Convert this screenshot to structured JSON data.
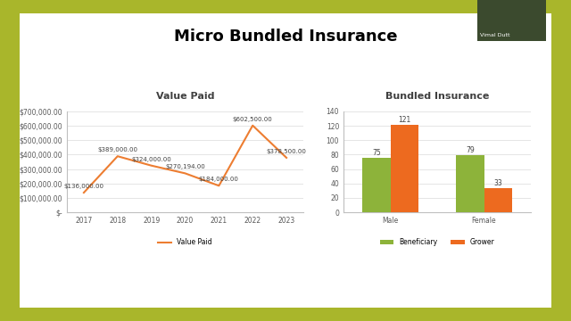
{
  "title": "Micro Bundled Insurance",
  "presenter": "Vimal Dutt",
  "chart_data": [
    {
      "type": "line",
      "title": "Value Paid",
      "categories": [
        "2017",
        "2018",
        "2019",
        "2020",
        "2021",
        "2022",
        "2023"
      ],
      "series": [
        {
          "name": "Value Paid",
          "color": "#ED7D31",
          "values": [
            136000,
            389000,
            324000,
            270194,
            184000,
            602500,
            378500
          ],
          "value_labels": [
            "$136,000.00",
            "$389,000.00",
            "$324,000.00",
            "$270,194.00",
            "$184,000.00",
            "$602,500.00",
            "$378,500.00"
          ]
        }
      ],
      "ylim": [
        0,
        700000
      ],
      "yticks": [
        {
          "value": 0,
          "label": "$-"
        },
        {
          "value": 100000,
          "label": "$100,000.00"
        },
        {
          "value": 200000,
          "label": "$200,000.00"
        },
        {
          "value": 300000,
          "label": "$300,000.00"
        },
        {
          "value": 400000,
          "label": "$400,000.00"
        },
        {
          "value": 500000,
          "label": "$500,000.00"
        },
        {
          "value": 600000,
          "label": "$600,000.00"
        },
        {
          "value": 700000,
          "label": "$700,000.00"
        }
      ],
      "data_labels": true,
      "legend": "bottom",
      "grid": true
    },
    {
      "type": "bar",
      "title": "Bundled Insurance",
      "categories": [
        "Male",
        "Female"
      ],
      "series": [
        {
          "name": "Beneficiary",
          "color": "#8DB33A",
          "values": [
            75,
            79
          ]
        },
        {
          "name": "Grower",
          "color": "#ED6A1F",
          "values": [
            121,
            33
          ]
        }
      ],
      "ylim": [
        0,
        140
      ],
      "yticks": [
        0,
        20,
        40,
        60,
        80,
        100,
        120,
        140
      ],
      "data_labels": true,
      "legend": "bottom",
      "grid": true
    }
  ]
}
